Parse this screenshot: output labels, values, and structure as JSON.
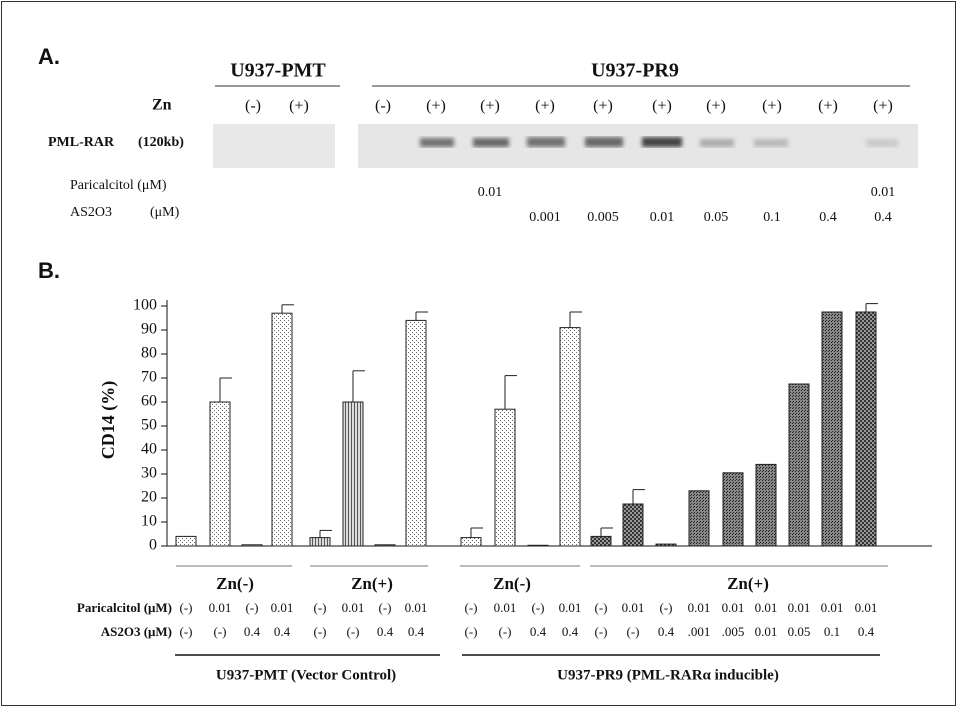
{
  "panel_a": {
    "label": "A.",
    "group_pmt": "U937-PMT",
    "group_pr9": "U937-PR9",
    "zn_label": "Zn",
    "pmt_lanes": [
      "(-)",
      "(+)"
    ],
    "pr9_lanes": [
      "(-)",
      "(+)",
      "(+)",
      "(+)",
      "(+)",
      "(+)",
      "(+)",
      "(+)",
      "(+)",
      "(+)"
    ],
    "protein": "PML-RAR",
    "protein_size": "(120kb)",
    "paricalcitol_label": "Paricalcitol (μM)",
    "as2o3_label": "AS2O3",
    "as2o3_unit": "(μM)",
    "paricalcitol": [
      null,
      null,
      "0.01",
      null,
      null,
      null,
      null,
      null,
      null,
      "0.01"
    ],
    "as2o3": [
      null,
      null,
      null,
      "0.001",
      "0.005",
      "0.01",
      "0.05",
      "0.1",
      "0.4",
      "0.4"
    ]
  },
  "chart_data": {
    "type": "bar",
    "panel_label": "B.",
    "ylabel": "CD14 (%)",
    "values": [
      4,
      60,
      0.5,
      97,
      3.5,
      60,
      0.5,
      94,
      3.5,
      57,
      0.3,
      91,
      4,
      17.5,
      0.8,
      23,
      30.5,
      34,
      67.5,
      97.5,
      97.5
    ],
    "errors": [
      null,
      10,
      null,
      3.5,
      3,
      13,
      null,
      3.5,
      4,
      14,
      null,
      6.5,
      3.5,
      6,
      null,
      null,
      null,
      null,
      null,
      null,
      3.5
    ],
    "ylim": [
      0,
      100
    ],
    "yticks": [
      0,
      10,
      20,
      30,
      40,
      50,
      60,
      70,
      80,
      90,
      100
    ],
    "zn_groups": [
      "Zn(-)",
      "Zn(+)",
      "Zn(-)",
      "Zn(+)"
    ],
    "paricalcitol_label": "Paricalcitol (μM)",
    "as2o3_label": "AS2O3 (μM)",
    "paricalcitol": [
      "(-)",
      "0.01",
      "(-)",
      "0.01",
      "(-)",
      "0.01",
      "(-)",
      "0.01",
      "(-)",
      "0.01",
      "(-)",
      "0.01",
      "(-)",
      "0.01",
      "(-)",
      "0.01",
      "0.01",
      "0.01",
      "0.01",
      "0.01",
      "0.01"
    ],
    "as2o3": [
      "(-)",
      "(-)",
      "0.4",
      "0.4",
      "(-)",
      "(-)",
      "0.4",
      "0.4",
      "(-)",
      "(-)",
      "0.4",
      "0.4",
      "(-)",
      "(-)",
      "0.4",
      ".001",
      ".005",
      "0.01",
      "0.05",
      "0.1",
      "0.4"
    ],
    "cell_lines": [
      "U937-PMT (Vector Control)",
      "U937-PR9 (PML-RARα inducible)"
    ]
  }
}
